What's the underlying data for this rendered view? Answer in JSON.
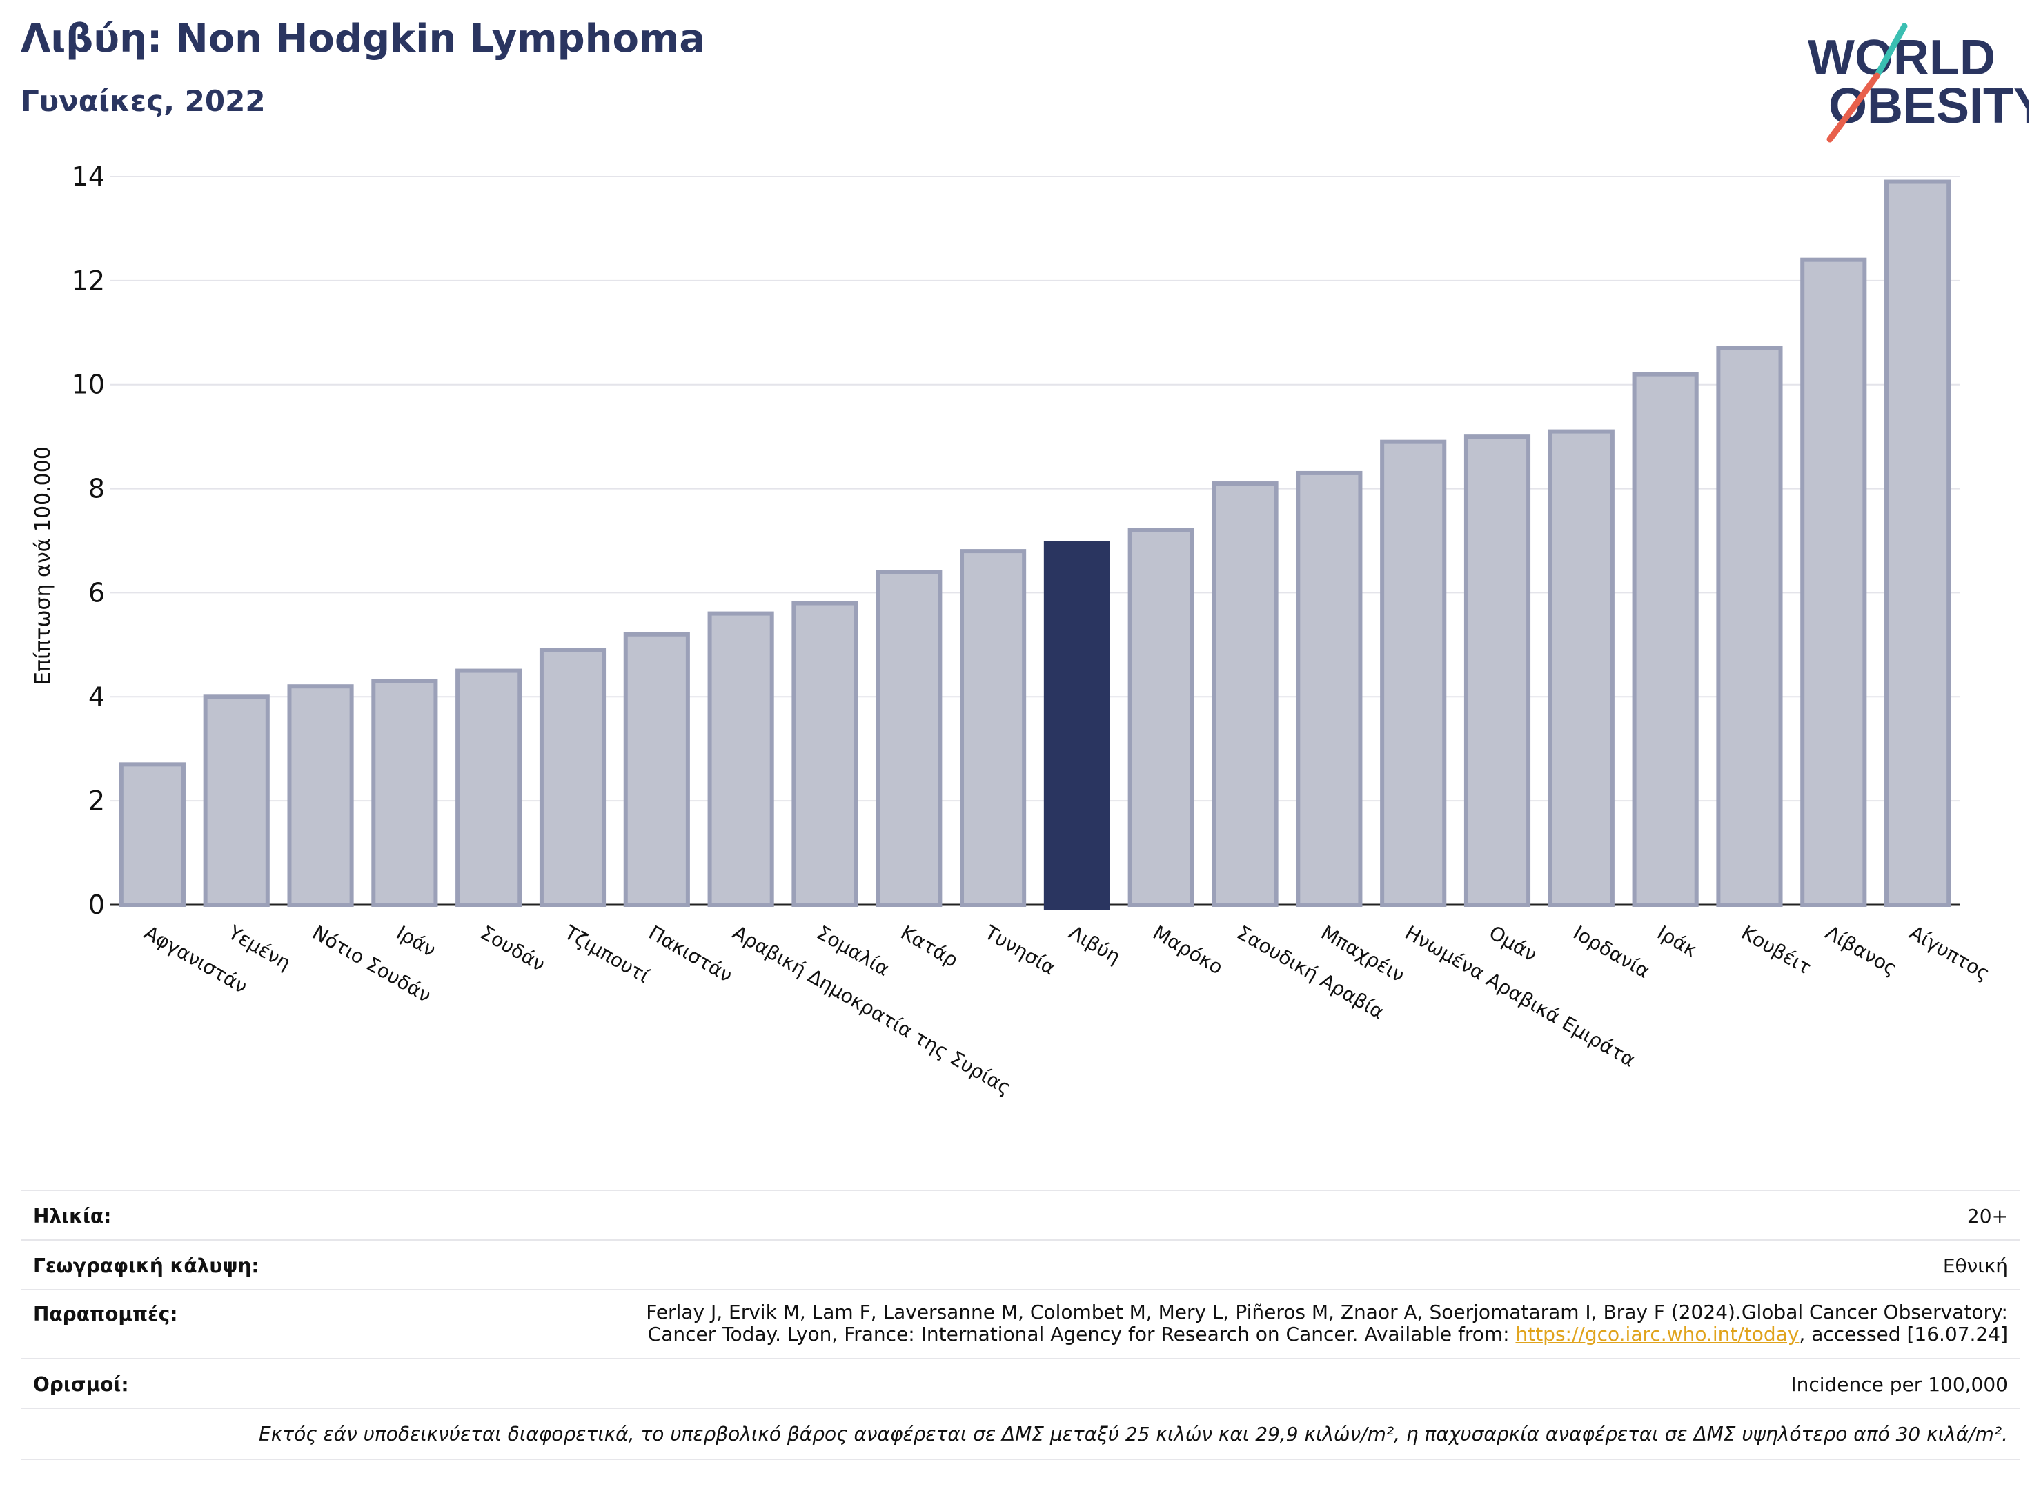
{
  "header": {
    "title": "Λιβύη: Non Hodgkin Lymphoma",
    "subtitle": "Γυναίκες, 2022"
  },
  "logo": {
    "line1": "WORLD",
    "line2": "OBESITY",
    "accent": "#e8604c",
    "teal": "#3bbfb2"
  },
  "colors": {
    "bar": "#bfc2cf",
    "bar_border": "#9ba0b8",
    "highlight": "#2a3560"
  },
  "chart_data": {
    "type": "bar",
    "ylabel": "Επίπτωση ανά 100.000",
    "xlabel": "",
    "ylim": [
      0,
      14
    ],
    "yticks": [
      0,
      2,
      4,
      6,
      8,
      10,
      12,
      14
    ],
    "grid": true,
    "highlight": "Λιβύη",
    "categories": [
      "Αφγανιστάν",
      "Υεμένη",
      "Νότιο Σουδάν",
      "Ιράν",
      "Σουδάν",
      "Τζιμπουτί",
      "Πακιστάν",
      "Αραβική Δημοκρατία της Συρίας",
      "Σομαλία",
      "Κατάρ",
      "Τυνησία",
      "Λιβύη",
      "Μαρόκο",
      "Σαουδική Αραβία",
      "Μπαχρέιν",
      "Ηνωμένα Αραβικά Εμιράτα",
      "Ομάν",
      "Ιορδανία",
      "Ιράκ",
      "Κουβέιτ",
      "Λίβανος",
      "Αίγυπτος"
    ],
    "values": [
      2.7,
      4.0,
      4.2,
      4.3,
      4.5,
      4.9,
      5.2,
      5.6,
      5.8,
      6.4,
      6.8,
      6.95,
      7.2,
      8.1,
      8.3,
      8.9,
      9.0,
      9.1,
      10.2,
      10.7,
      12.4,
      13.9
    ]
  },
  "meta": {
    "age_label": "Ηλικία:",
    "age_value": "20+",
    "coverage_label": "Γεωγραφική κάλυψη:",
    "coverage_value": "Εθνική",
    "refs_label": "Παραπομπές:",
    "refs_line1": "Ferlay J, Ervik M, Lam F, Laversanne M, Colombet M, Mery L, Piñeros M, Znaor A, Soerjomataram I, Bray F (2024).Global Cancer Observatory:",
    "refs_line2_pre": "Cancer Today. Lyon, France: International Agency for Research on Cancer. Available from: ",
    "refs_link": "https://gco.iarc.who.int/today",
    "refs_line2_post": ", accessed [16.07.24]",
    "defs_label": "Ορισμοί:",
    "defs_value": "Incidence per 100,000",
    "note": "Εκτός εάν υποδεικνύεται διαφορετικά, το υπερβολικό βάρος αναφέρεται σε ΔΜΣ μεταξύ 25 κιλών και 29,9 κιλών/m², η παχυσαρκία αναφέρεται σε ΔΜΣ υψηλότερο από 30 κιλά/m²."
  }
}
